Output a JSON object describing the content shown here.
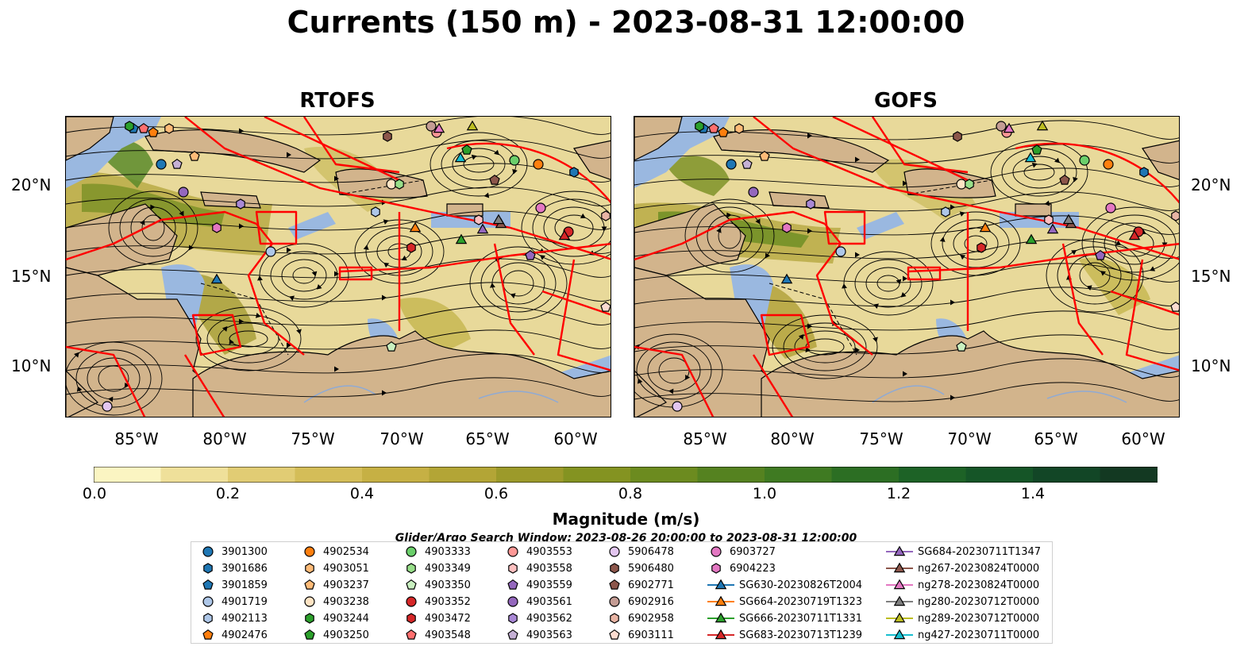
{
  "title": "Currents (150 m) - 2023-08-31 12:00:00",
  "panels": [
    {
      "title": "RTOFS"
    },
    {
      "title": "GOFS"
    }
  ],
  "lat_labels": [
    "20°N",
    "15°N",
    "10°N"
  ],
  "lon_labels": [
    "85°W",
    "80°W",
    "75°W",
    "70°W",
    "65°W",
    "60°W"
  ],
  "colorbar": {
    "label": "Magnitude (m/s)",
    "ticks": [
      "0.0",
      "0.2",
      "0.4",
      "0.6",
      "0.8",
      "1.0",
      "1.2",
      "1.4"
    ],
    "colors": [
      "#fbf5c2",
      "#efe09a",
      "#e1cc74",
      "#d4bd58",
      "#c6b044",
      "#b3a536",
      "#9c9a2a",
      "#849321",
      "#6c8b1f",
      "#558220",
      "#3f7a22",
      "#2c6e23",
      "#1d6226",
      "#155527",
      "#124626",
      "#133922",
      "#152e1c"
    ]
  },
  "search_window": "Glider/Argo Search Window: 2023-08-26 20:00:00 to 2023-08-31 12:00:00",
  "colors": {
    "land": "#d2b48c",
    "shallow": "#9ab8e0",
    "eez_line": "#ff0000"
  },
  "legend": [
    {
      "label": "3901300",
      "marker": "circle",
      "color": "#1f77b4"
    },
    {
      "label": "3901686",
      "marker": "hexagon",
      "color": "#1f77b4"
    },
    {
      "label": "3901859",
      "marker": "pentagon",
      "color": "#1f77b4"
    },
    {
      "label": "4901719",
      "marker": "circle",
      "color": "#aec7e8"
    },
    {
      "label": "4902113",
      "marker": "hexagon",
      "color": "#aec7e8"
    },
    {
      "label": "4902476",
      "marker": "pentagon",
      "color": "#ff7f0e"
    },
    {
      "label": "4902534",
      "marker": "circle",
      "color": "#ff7f0e"
    },
    {
      "label": "4903051",
      "marker": "hexagon",
      "color": "#ffbb78"
    },
    {
      "label": "4903237",
      "marker": "pentagon",
      "color": "#ffbb78"
    },
    {
      "label": "4903238",
      "marker": "circle",
      "color": "#ffe4c4"
    },
    {
      "label": "4903244",
      "marker": "hexagon",
      "color": "#2ca02c"
    },
    {
      "label": "4903250",
      "marker": "pentagon",
      "color": "#2ca02c"
    },
    {
      "label": "4903333",
      "marker": "circle",
      "color": "#6bcf6b"
    },
    {
      "label": "4903349",
      "marker": "hexagon",
      "color": "#98df8a"
    },
    {
      "label": "4903350",
      "marker": "pentagon",
      "color": "#c9f0c0"
    },
    {
      "label": "4903352",
      "marker": "circle",
      "color": "#d62728"
    },
    {
      "label": "4903472",
      "marker": "hexagon",
      "color": "#d62728"
    },
    {
      "label": "4903548",
      "marker": "pentagon",
      "color": "#ff6f6f"
    },
    {
      "label": "4903553",
      "marker": "circle",
      "color": "#ff9896"
    },
    {
      "label": "4903558",
      "marker": "hexagon",
      "color": "#ffc0c0"
    },
    {
      "label": "4903559",
      "marker": "pentagon",
      "color": "#9467bd"
    },
    {
      "label": "4903561",
      "marker": "circle",
      "color": "#9467bd"
    },
    {
      "label": "4903562",
      "marker": "hexagon",
      "color": "#a988d6"
    },
    {
      "label": "4903563",
      "marker": "pentagon",
      "color": "#c5b0d5"
    },
    {
      "label": "5906478",
      "marker": "circle",
      "color": "#e3c6f0"
    },
    {
      "label": "5906480",
      "marker": "hexagon",
      "color": "#8c564b"
    },
    {
      "label": "6902771",
      "marker": "pentagon",
      "color": "#8c564b"
    },
    {
      "label": "6902916",
      "marker": "circle",
      "color": "#c49c94"
    },
    {
      "label": "6902958",
      "marker": "hexagon",
      "color": "#e8b4a4"
    },
    {
      "label": "6903111",
      "marker": "pentagon",
      "color": "#fddcd0"
    },
    {
      "label": "6903727",
      "marker": "circle",
      "color": "#e377c2"
    },
    {
      "label": "6904223",
      "marker": "hexagon",
      "color": "#e377c2"
    },
    {
      "label": "SG630-20230826T2004",
      "marker": "triangle-line",
      "color": "#1f77b4"
    },
    {
      "label": "SG664-20230719T1323",
      "marker": "triangle-line",
      "color": "#ff7f0e"
    },
    {
      "label": "SG666-20230711T1331",
      "marker": "triangle-line",
      "color": "#2ca02c"
    },
    {
      "label": "SG683-20230713T1239",
      "marker": "triangle-line",
      "color": "#d62728"
    },
    {
      "label": "SG684-20230711T1347",
      "marker": "triangle-line",
      "color": "#9467bd"
    },
    {
      "label": "ng267-20230824T0000",
      "marker": "triangle-line",
      "color": "#8c564b"
    },
    {
      "label": "ng278-20230824T0000",
      "marker": "triangle-line",
      "color": "#e377c2"
    },
    {
      "label": "ng280-20230712T0000",
      "marker": "triangle-line",
      "color": "#7f7f7f"
    },
    {
      "label": "ng289-20230712T0000",
      "marker": "triangle-line",
      "color": "#bcbd22"
    },
    {
      "label": "ng427-20230711T0000",
      "marker": "triangle-line",
      "color": "#17becf"
    }
  ]
}
